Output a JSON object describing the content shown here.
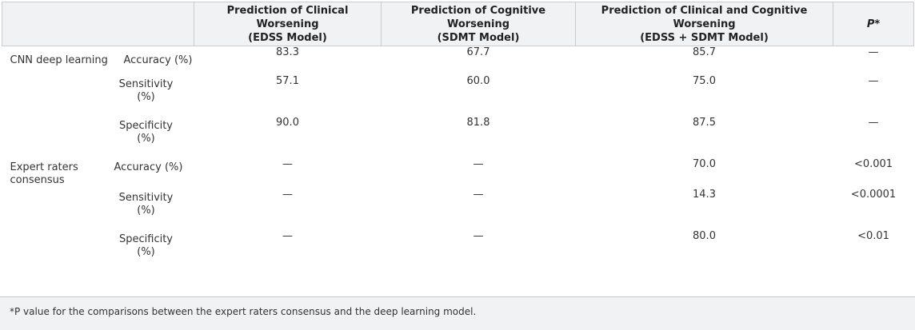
{
  "table": {
    "headers": [
      "",
      "Prediction of Clinical Worsening (EDSS Model)",
      "Prediction of Cognitive Worsening (SDMT Model)",
      "Prediction of Clinical and Cognitive Worsening (EDSS + SDMT Model)",
      "P*"
    ],
    "header_lines": {
      "clinical": [
        "Prediction of Clinical Worsening",
        "(EDSS Model)"
      ],
      "cognitive": [
        "Prediction of Cognitive Worsening",
        "(SDMT Model)"
      ],
      "combined": [
        "Prediction of Clinical and Cognitive Worsening",
        "(EDSS + SDMT Model)"
      ],
      "p": "P*"
    },
    "groups": [
      {
        "label": "CNN deep learning",
        "rows": [
          {
            "metric": "Accuracy (%)",
            "edss": "83.3",
            "sdmt": "67.7",
            "combined": "85.7",
            "p": "—"
          },
          {
            "metric": "Sensitivity (%)",
            "edss": "57.1",
            "sdmt": "60.0",
            "combined": "75.0",
            "p": "—"
          },
          {
            "metric": "Specificity (%)",
            "edss": "90.0",
            "sdmt": "81.8",
            "combined": "87.5",
            "p": "—"
          }
        ]
      },
      {
        "label": "Expert raters consensus",
        "rows": [
          {
            "metric": "Accuracy (%)",
            "edss": "—",
            "sdmt": "—",
            "combined": "70.0",
            "p": "<0.001"
          },
          {
            "metric": "Sensitivity (%)",
            "edss": "—",
            "sdmt": "—",
            "combined": "14.3",
            "p": "<0.0001"
          },
          {
            "metric": "Specificity (%)",
            "edss": "—",
            "sdmt": "—",
            "combined": "80.0",
            "p": "<0.01"
          }
        ]
      }
    ]
  },
  "footnote": "*P value for the comparisons between the expert raters consensus and the deep learning model."
}
